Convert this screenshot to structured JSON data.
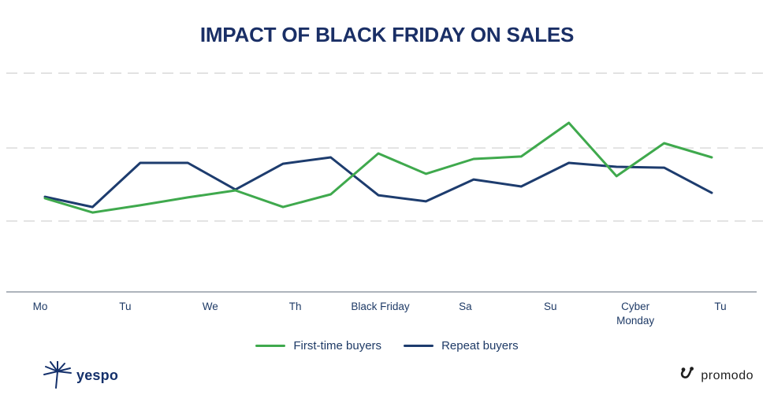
{
  "chart_data": {
    "type": "line",
    "title": "IMPACT OF BLACK FRIDAY ON SALES",
    "xlabel": "",
    "ylabel": "",
    "x_labels": [
      "Mo",
      "Tu",
      "We",
      "Th",
      "Black Friday",
      "Sa",
      "Su",
      "Cyber Monday",
      "Tu"
    ],
    "ylim": [
      0,
      115
    ],
    "gridline_values": [
      32.4,
      65.8,
      100
    ],
    "grid": "horizontal-dashed",
    "legend_position": "bottom",
    "series": [
      {
        "name": "First-time buyers",
        "color": "#3fa94d",
        "values": [
          42.8,
          36.3,
          39.6,
          43.2,
          46.4,
          38.8,
          44.6,
          63.3,
          54.0,
          60.8,
          61.9,
          77.3,
          52.9,
          68.0,
          61.5
        ]
      },
      {
        "name": "Repeat buyers",
        "color": "#1d3c6e",
        "values": [
          43.5,
          38.8,
          59.0,
          59.0,
          46.8,
          58.6,
          61.5,
          44.2,
          41.4,
          51.4,
          48.2,
          59.0,
          57.2,
          56.8,
          45.3
        ]
      }
    ]
  },
  "footer": {
    "yespo_label": "yespo",
    "promodo_label": "promodo"
  },
  "colors": {
    "gridline": "#e2e2e2",
    "axis": "#7d8694",
    "axis_label": "#1e3a66",
    "title": "#1a2f66"
  }
}
